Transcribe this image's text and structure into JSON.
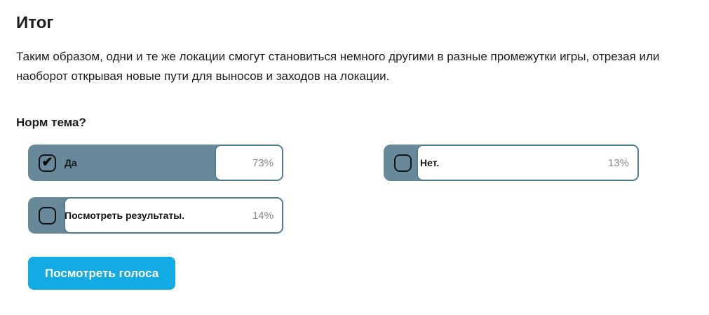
{
  "page": {
    "title": "Итог",
    "paragraph": "Таким образом, одни и те же локации смогут становиться немного другими в разные промежутки игры, отрезая или наоборот открывая новые пути для выносов и заходов на локации."
  },
  "poll": {
    "question": "Норм тема?",
    "options": [
      {
        "label": "Да",
        "percent_label": "73%",
        "percent_value": 73,
        "checked": true
      },
      {
        "label": "Нет.",
        "percent_label": "13%",
        "percent_value": 13,
        "checked": false
      },
      {
        "label": "Посмотреть результаты.",
        "percent_label": "14%",
        "percent_value": 14,
        "checked": false
      }
    ],
    "button_label": "Посмотреть голоса"
  },
  "icons": {
    "checkmark": "✔"
  },
  "colors": {
    "option-fill": "#68899A",
    "option-border": "#4F7F92",
    "button-bg": "#12ABE3",
    "percent-text": "#85888C",
    "text-dark": "#1C1D1F"
  }
}
